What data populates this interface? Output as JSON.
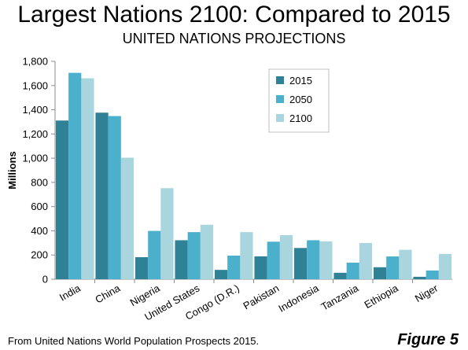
{
  "title": "Largest Nations 2100: Compared to 2015",
  "subtitle": "UNITED NATIONS PROJECTIONS",
  "footnote": "From  United Nations World Population Prospects 2015.",
  "figure_label": "Figure 5",
  "colors": {
    "2015": "#2f8196",
    "2050": "#4bb0cb",
    "2100": "#a9d5df",
    "axis": "#8e8e8e",
    "text": "#000000"
  },
  "chart_data": {
    "type": "bar",
    "title": "Largest Nations 2100: Compared to 2015",
    "subtitle": "UNITED NATIONS PROJECTIONS",
    "xlabel": "",
    "ylabel": "Millions",
    "ylim": [
      0,
      1800
    ],
    "yticks": [
      0,
      200,
      400,
      600,
      800,
      1000,
      1200,
      1400,
      1600,
      1800
    ],
    "ytick_labels": [
      "0",
      "200",
      "400",
      "600",
      "800",
      "1,000",
      "1,200",
      "1,400",
      "1,600",
      "1,800"
    ],
    "categories": [
      "India",
      "China",
      "Nigeria",
      "United States",
      "Congo (D.R.)",
      "Pakistan",
      "Indonesia",
      "Tanzania",
      "Ethiopia",
      "Niger"
    ],
    "series": [
      {
        "name": "2015",
        "color": "#2f8196",
        "values": [
          1311,
          1376,
          182,
          322,
          77,
          189,
          258,
          53,
          99,
          20
        ]
      },
      {
        "name": "2050",
        "color": "#4bb0cb",
        "values": [
          1705,
          1348,
          399,
          389,
          195,
          310,
          322,
          137,
          188,
          72
        ]
      },
      {
        "name": "2100",
        "color": "#a9d5df",
        "values": [
          1660,
          1004,
          752,
          450,
          389,
          364,
          313,
          299,
          243,
          209
        ]
      }
    ],
    "legend_position": "top-center",
    "grid": false
  }
}
